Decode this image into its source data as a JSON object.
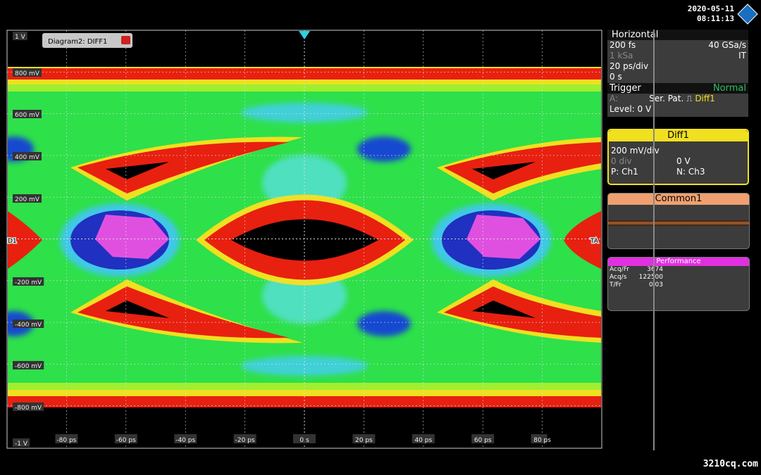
{
  "header": {
    "date": "2020-05-11",
    "time": "08:11:13"
  },
  "diagram": {
    "tab": "Diagram2: DIFF1",
    "y_labels": [
      "1 V",
      "800 mV",
      "600 mV",
      "400 mV",
      "200 mV",
      "-200 mV",
      "-400 mV",
      "-600 mV",
      "-800 mV",
      "-1 V"
    ],
    "x_labels": [
      "-80 ps",
      "-60 ps",
      "-40 ps",
      "-20 ps",
      "0 s",
      "20 ps",
      "40 ps",
      "60 ps",
      "80 ps"
    ],
    "left_marker": "D1",
    "right_marker": "TA"
  },
  "horizontal": {
    "title": "Horizontal",
    "resolution": "200 fs",
    "sample_rate": "40 GSa/s",
    "record": "1 kSa",
    "mode": "IT",
    "scale": "20 ps/div",
    "position": "0 s"
  },
  "trigger": {
    "title": "Trigger",
    "mode": "Normal",
    "source_label": "A:",
    "type": "Ser. Pat.",
    "source": "Diff1",
    "level": "Level: 0 V"
  },
  "diff1": {
    "title": "Diff1",
    "scale": "200 mV/div",
    "div": "0 div",
    "offset": "0 V",
    "p": "P: Ch1",
    "n": "N: Ch3"
  },
  "common1": {
    "title": "Common1"
  },
  "performance": {
    "title": "Performance",
    "rows": [
      [
        "Acq/Fr",
        "3674"
      ],
      [
        "Acq/s",
        "122500"
      ],
      [
        "T/Fr",
        "0.03"
      ]
    ]
  },
  "watermark": "3210cq.com"
}
